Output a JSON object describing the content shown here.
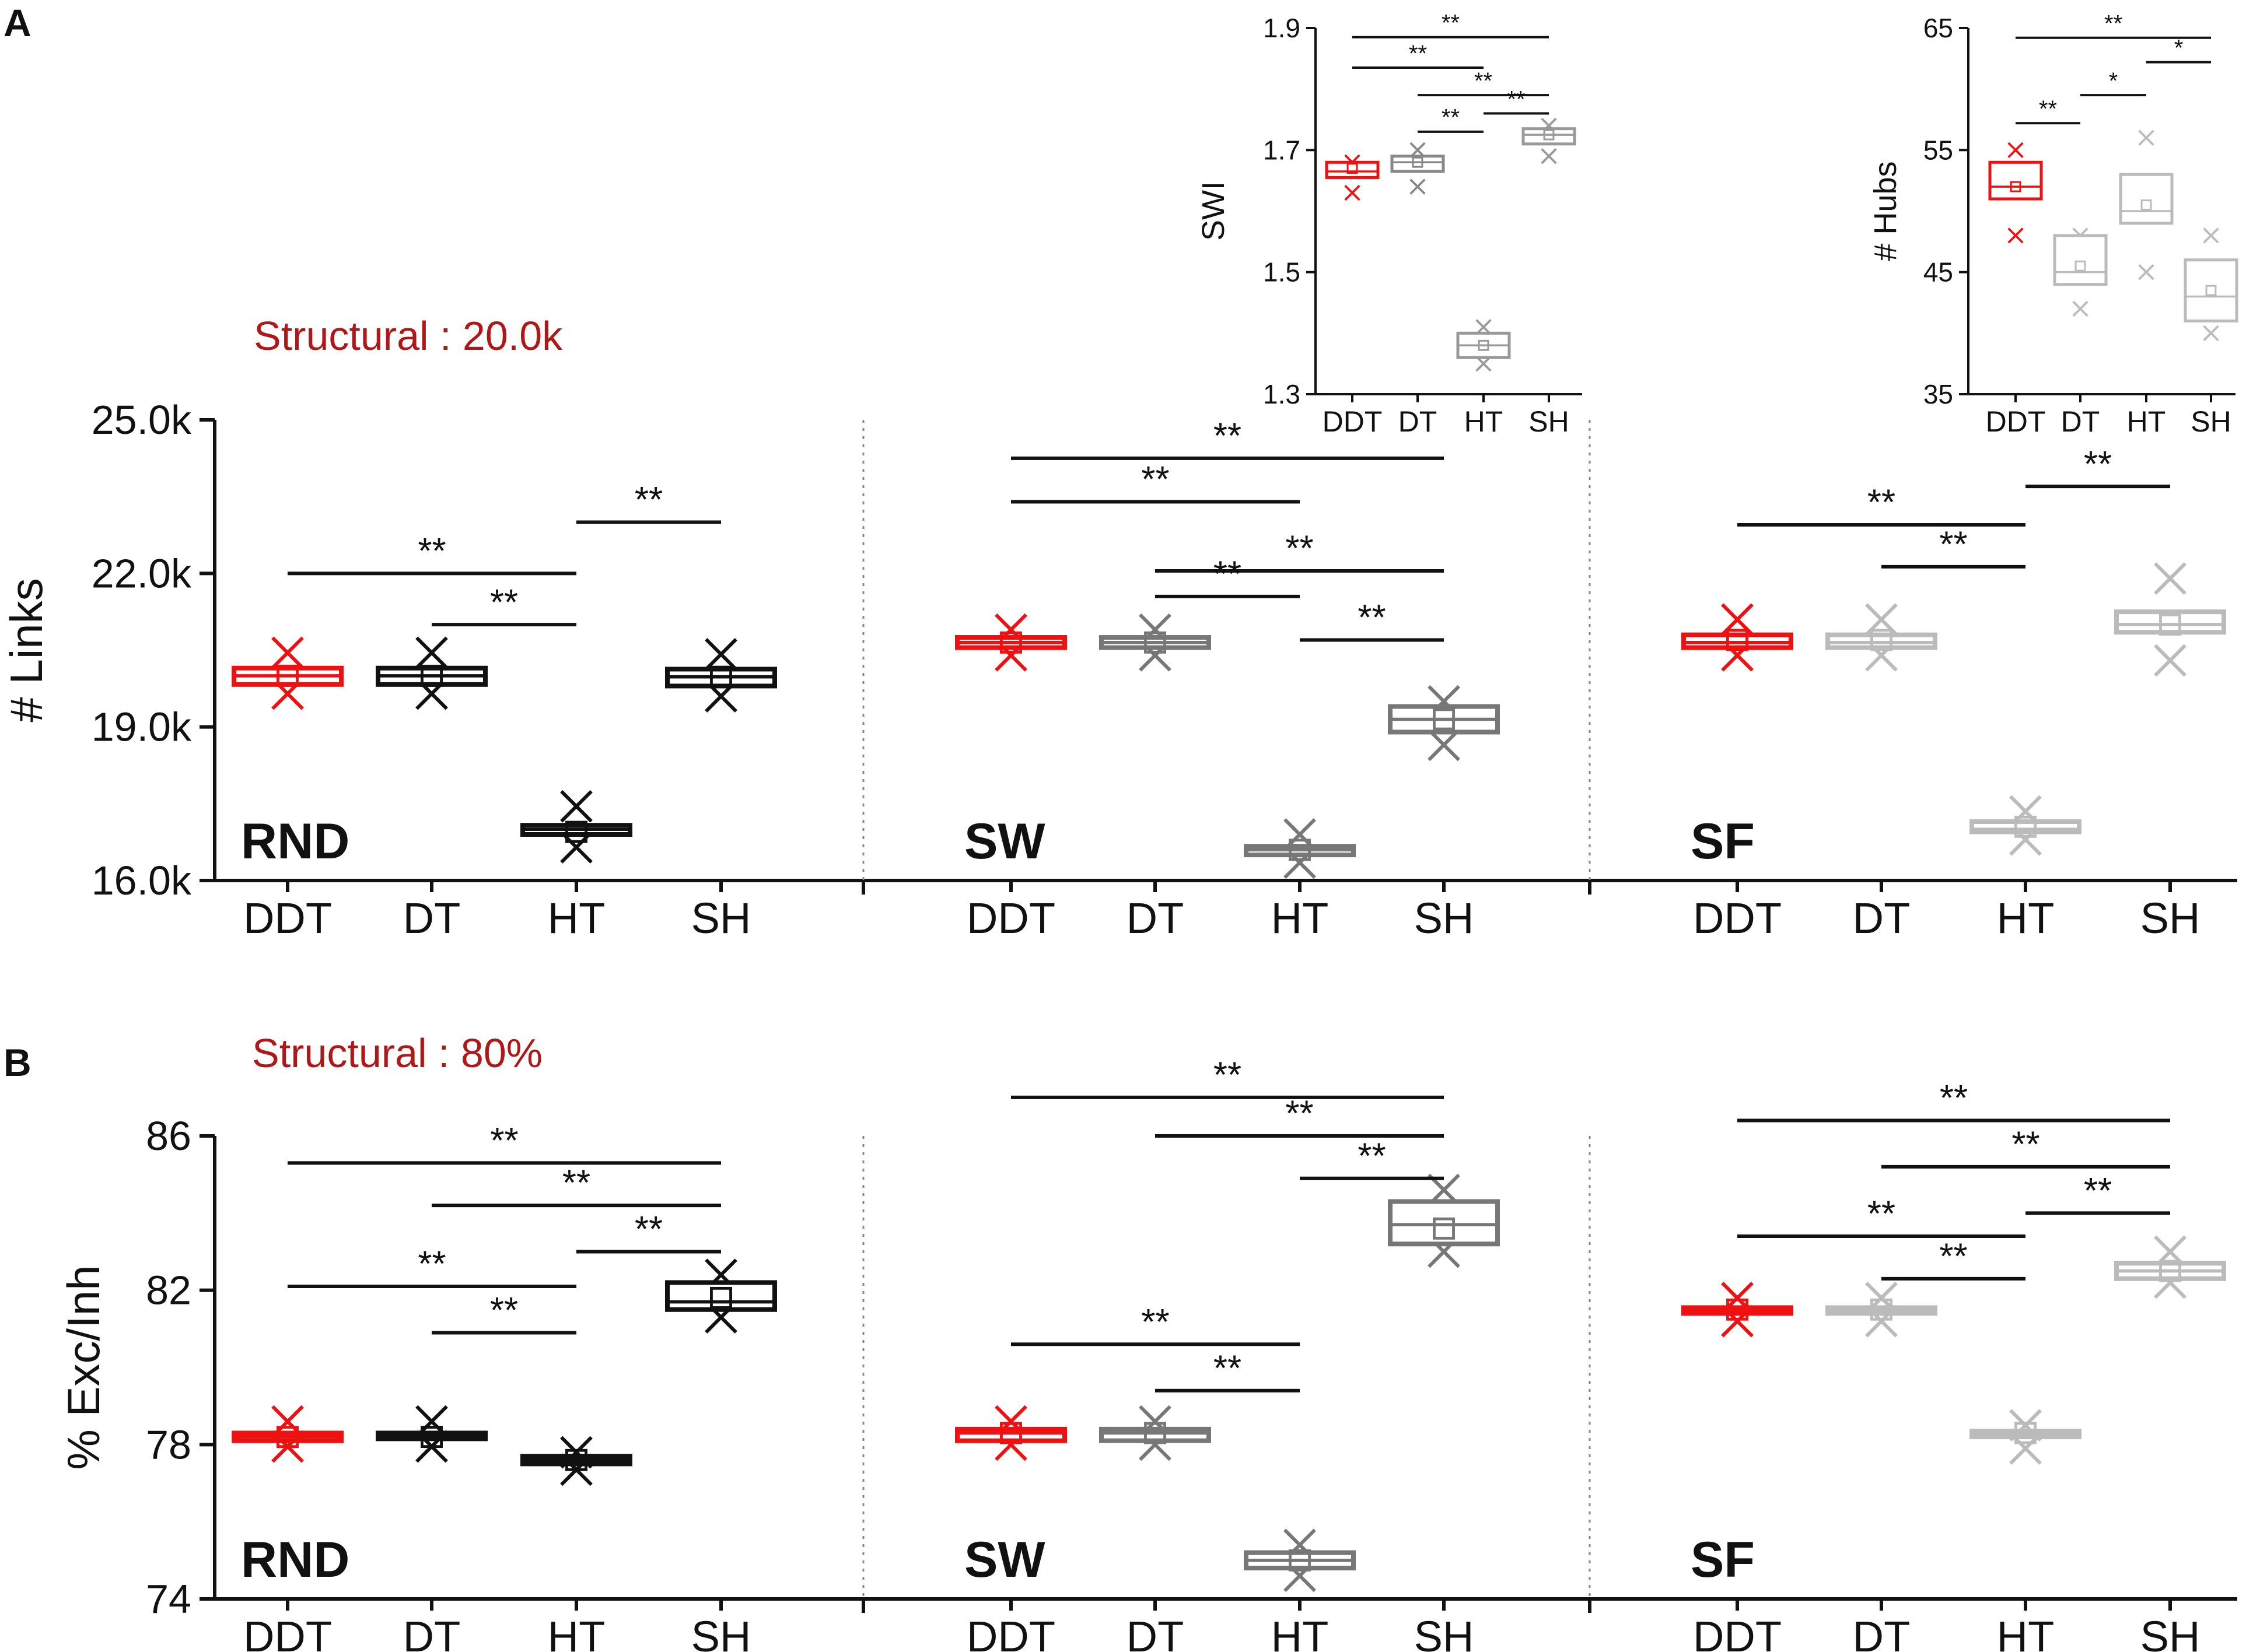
{
  "panel_labels": {
    "a": "A",
    "b": "B"
  },
  "annotations": {
    "a": "Structural : 20.0k",
    "b": "Structural : 80%"
  },
  "sig_levels": {
    "double": "**",
    "single": "*"
  },
  "colors": {
    "DDT": "#ee1111",
    "RND": "#111111",
    "SW": "#777777",
    "SF": "#bbbbbb"
  },
  "chart_data": [
    {
      "id": "links",
      "type": "box",
      "title": "",
      "ylabel": "# Links",
      "ylim": [
        16000,
        25000
      ],
      "yticks": [
        16000,
        19000,
        22000,
        25000
      ],
      "yticklabels": [
        "16.0k",
        "19.0k",
        "22.0k",
        "25.0k"
      ],
      "categories": [
        "DDT",
        "DT",
        "HT",
        "SH"
      ],
      "groups": [
        {
          "name": "RND",
          "color": "#111111",
          "boxes": [
            {
              "cat": "DDT",
              "q1": 19830,
              "median": 20000,
              "q3": 20150,
              "mean": 20000,
              "outliers": [
                20450,
                19650
              ],
              "color": "#ee1111"
            },
            {
              "cat": "DT",
              "q1": 19830,
              "median": 20000,
              "q3": 20150,
              "mean": 20000,
              "outliers": [
                20450,
                19650
              ]
            },
            {
              "cat": "HT",
              "q1": 16900,
              "median": 17000,
              "q3": 17080,
              "mean": 16950,
              "outliers": [
                17450,
                16650
              ]
            },
            {
              "cat": "SH",
              "q1": 19800,
              "median": 19980,
              "q3": 20130,
              "mean": 19980,
              "outliers": [
                20420,
                19600
              ]
            }
          ],
          "sig": [
            {
              "from": "DDT",
              "to": "HT",
              "label": "**",
              "y": 22000
            },
            {
              "from": "DT",
              "to": "HT",
              "label": "**",
              "y": 21000
            },
            {
              "from": "HT",
              "to": "SH",
              "label": "**",
              "y": 23000
            }
          ]
        },
        {
          "name": "SW",
          "color": "#777777",
          "boxes": [
            {
              "cat": "DDT",
              "q1": 20550,
              "median": 20650,
              "q3": 20750,
              "mean": 20650,
              "outliers": [
                20900,
                20400
              ],
              "color": "#ee1111"
            },
            {
              "cat": "DT",
              "q1": 20550,
              "median": 20650,
              "q3": 20750,
              "mean": 20650,
              "outliers": [
                20900,
                20400
              ]
            },
            {
              "cat": "HT",
              "q1": 16500,
              "median": 16600,
              "q3": 16670,
              "mean": 16600,
              "outliers": [
                16900,
                16350
              ]
            },
            {
              "cat": "SH",
              "q1": 18900,
              "median": 19150,
              "q3": 19400,
              "mean": 19150,
              "outliers": [
                19500,
                18650
              ]
            }
          ],
          "sig": [
            {
              "from": "DDT",
              "to": "SH",
              "label": "**",
              "y": 24250
            },
            {
              "from": "DDT",
              "to": "HT",
              "label": "**",
              "y": 23400
            },
            {
              "from": "DT",
              "to": "SH",
              "label": "**",
              "y": 22050
            },
            {
              "from": "DT",
              "to": "HT",
              "label": "**",
              "y": 21550
            },
            {
              "from": "HT",
              "to": "SH",
              "label": "**",
              "y": 20700
            }
          ]
        },
        {
          "name": "SF",
          "color": "#bbbbbb",
          "boxes": [
            {
              "cat": "DDT",
              "q1": 20550,
              "median": 20650,
              "q3": 20800,
              "mean": 20700,
              "outliers": [
                21100,
                20400
              ],
              "color": "#ee1111"
            },
            {
              "cat": "DT",
              "q1": 20550,
              "median": 20650,
              "q3": 20800,
              "mean": 20700,
              "outliers": [
                21100,
                20400
              ]
            },
            {
              "cat": "HT",
              "q1": 16950,
              "median": 17000,
              "q3": 17150,
              "mean": 17050,
              "outliers": [
                17350,
                16800
              ]
            },
            {
              "cat": "SH",
              "q1": 20850,
              "median": 21000,
              "q3": 21250,
              "mean": 21000,
              "outliers": [
                21900,
                20300
              ]
            }
          ],
          "sig": [
            {
              "from": "DDT",
              "to": "HT",
              "label": "**",
              "y": 22950
            },
            {
              "from": "DT",
              "to": "HT",
              "label": "**",
              "y": 22130
            },
            {
              "from": "HT",
              "to": "SH",
              "label": "**",
              "y": 23700
            }
          ]
        }
      ]
    },
    {
      "id": "exc",
      "type": "box",
      "title": "",
      "ylabel": "% Exc/Inh",
      "ylim": [
        74,
        86
      ],
      "yticks": [
        74,
        78,
        82,
        86
      ],
      "yticklabels": [
        "74",
        "78",
        "82",
        "86"
      ],
      "categories": [
        "DDT",
        "DT",
        "HT",
        "SH"
      ],
      "groups": [
        {
          "name": "RND",
          "color": "#111111",
          "boxes": [
            {
              "cat": "DDT",
              "q1": 78.1,
              "median": 78.2,
              "q3": 78.3,
              "mean": 78.2,
              "outliers": [
                78.6,
                77.95
              ],
              "color": "#ee1111"
            },
            {
              "cat": "DT",
              "q1": 78.15,
              "median": 78.2,
              "q3": 78.3,
              "mean": 78.2,
              "outliers": [
                78.6,
                77.95
              ]
            },
            {
              "cat": "HT",
              "q1": 77.5,
              "median": 77.6,
              "q3": 77.7,
              "mean": 77.6,
              "outliers": [
                77.8,
                77.35
              ]
            },
            {
              "cat": "SH",
              "q1": 81.5,
              "median": 81.7,
              "q3": 82.2,
              "mean": 81.8,
              "outliers": [
                82.4,
                81.3
              ]
            }
          ],
          "sig": [
            {
              "from": "DDT",
              "to": "SH",
              "label": "**",
              "y": 85.3
            },
            {
              "from": "DT",
              "to": "SH",
              "label": "**",
              "y": 84.2
            },
            {
              "from": "HT",
              "to": "SH",
              "label": "**",
              "y": 83.0
            },
            {
              "from": "DDT",
              "to": "HT",
              "label": "**",
              "y": 82.1
            },
            {
              "from": "DT",
              "to": "HT",
              "label": "**",
              "y": 80.9
            }
          ]
        },
        {
          "name": "SW",
          "color": "#777777",
          "boxes": [
            {
              "cat": "DDT",
              "q1": 78.1,
              "median": 78.3,
              "q3": 78.4,
              "mean": 78.3,
              "outliers": [
                78.6,
                78.0
              ],
              "color": "#ee1111"
            },
            {
              "cat": "DT",
              "q1": 78.1,
              "median": 78.3,
              "q3": 78.4,
              "mean": 78.3,
              "outliers": [
                78.6,
                78.0
              ]
            },
            {
              "cat": "HT",
              "q1": 74.8,
              "median": 75.0,
              "q3": 75.2,
              "mean": 75.0,
              "outliers": [
                75.4,
                74.6
              ]
            },
            {
              "cat": "SH",
              "q1": 83.2,
              "median": 83.7,
              "q3": 84.3,
              "mean": 83.6,
              "outliers": [
                84.6,
                83.0
              ]
            }
          ],
          "sig": [
            {
              "from": "DDT",
              "to": "SH",
              "label": "**",
              "y": 87.0
            },
            {
              "from": "DT",
              "to": "SH",
              "label": "**",
              "y": 86.0
            },
            {
              "from": "HT",
              "to": "SH",
              "label": "**",
              "y": 84.9
            },
            {
              "from": "DDT",
              "to": "HT",
              "label": "**",
              "y": 80.6
            },
            {
              "from": "DT",
              "to": "HT",
              "label": "**",
              "y": 79.4
            }
          ]
        },
        {
          "name": "SF",
          "color": "#bbbbbb",
          "boxes": [
            {
              "cat": "DDT",
              "q1": 81.4,
              "median": 81.5,
              "q3": 81.55,
              "mean": 81.5,
              "outliers": [
                81.8,
                81.2
              ],
              "color": "#ee1111"
            },
            {
              "cat": "DT",
              "q1": 81.4,
              "median": 81.5,
              "q3": 81.55,
              "mean": 81.5,
              "outliers": [
                81.8,
                81.2
              ]
            },
            {
              "cat": "HT",
              "q1": 78.2,
              "median": 78.25,
              "q3": 78.35,
              "mean": 78.3,
              "outliers": [
                78.5,
                77.9
              ]
            },
            {
              "cat": "SH",
              "q1": 82.3,
              "median": 82.5,
              "q3": 82.7,
              "mean": 82.5,
              "outliers": [
                83.0,
                82.2
              ]
            }
          ],
          "sig": [
            {
              "from": "DDT",
              "to": "SH",
              "label": "**",
              "y": 86.4
            },
            {
              "from": "DT",
              "to": "SH",
              "label": "**",
              "y": 85.2
            },
            {
              "from": "HT",
              "to": "SH",
              "label": "**",
              "y": 84.0
            },
            {
              "from": "DDT",
              "to": "HT",
              "label": "**",
              "y": 83.4
            },
            {
              "from": "DT",
              "to": "HT",
              "label": "**",
              "y": 82.3
            }
          ]
        }
      ]
    },
    {
      "id": "swi",
      "type": "box",
      "title": "",
      "ylabel": "SWI",
      "ylim": [
        1.3,
        1.9
      ],
      "yticks": [
        1.3,
        1.5,
        1.7,
        1.9
      ],
      "yticklabels": [
        "1.3",
        "1.5",
        "1.7",
        "1.9"
      ],
      "categories": [
        "DDT",
        "DT",
        "HT",
        "SH"
      ],
      "boxes": [
        {
          "cat": "DDT",
          "q1": 1.655,
          "median": 1.665,
          "q3": 1.68,
          "mean": 1.67,
          "outliers": [
            1.68,
            1.63
          ],
          "color": "#ee1111"
        },
        {
          "cat": "DT",
          "q1": 1.665,
          "median": 1.68,
          "q3": 1.69,
          "mean": 1.68,
          "outliers": [
            1.7,
            1.64
          ],
          "color": "#888888"
        },
        {
          "cat": "HT",
          "q1": 1.36,
          "median": 1.38,
          "q3": 1.4,
          "mean": 1.38,
          "outliers": [
            1.41,
            1.35
          ],
          "color": "#999999"
        },
        {
          "cat": "SH",
          "q1": 1.71,
          "median": 1.725,
          "q3": 1.735,
          "mean": 1.725,
          "outliers": [
            1.74,
            1.69
          ],
          "color": "#999999"
        }
      ],
      "sig": [
        {
          "from": "DDT",
          "to": "SH",
          "label": "**",
          "y": 1.885
        },
        {
          "from": "DDT",
          "to": "HT",
          "label": "**",
          "y": 1.835
        },
        {
          "from": "DT",
          "to": "SH",
          "label": "**",
          "y": 1.79
        },
        {
          "from": "HT",
          "to": "SH",
          "label": "**",
          "y": 1.76
        },
        {
          "from": "DT",
          "to": "HT",
          "label": "**",
          "y": 1.73
        }
      ]
    },
    {
      "id": "hubs",
      "type": "box",
      "title": "",
      "ylabel": "# Hubs",
      "ylim": [
        35,
        65
      ],
      "yticks": [
        35,
        45,
        55,
        65
      ],
      "yticklabels": [
        "35",
        "45",
        "55",
        "65"
      ],
      "categories": [
        "DDT",
        "DT",
        "HT",
        "SH"
      ],
      "boxes": [
        {
          "cat": "DDT",
          "q1": 51,
          "median": 52,
          "q3": 54,
          "mean": 52,
          "outliers": [
            55,
            48
          ],
          "color": "#ee1111"
        },
        {
          "cat": "DT",
          "q1": 44,
          "median": 45,
          "q3": 48,
          "mean": 45.5,
          "outliers": [
            48,
            42
          ],
          "color": "#bbbbbb"
        },
        {
          "cat": "HT",
          "q1": 49,
          "median": 50,
          "q3": 53,
          "mean": 50.5,
          "outliers": [
            56,
            45
          ],
          "color": "#bbbbbb"
        },
        {
          "cat": "SH",
          "q1": 41,
          "median": 43,
          "q3": 46,
          "mean": 43.5,
          "outliers": [
            48,
            40
          ],
          "color": "#bbbbbb"
        }
      ],
      "sig": [
        {
          "from": "DDT",
          "to": "SH",
          "label": "**",
          "y": 64.2
        },
        {
          "from": "HT",
          "to": "SH",
          "label": "*",
          "y": 62.2
        },
        {
          "from": "DT",
          "to": "HT",
          "label": "*",
          "y": 59.5
        },
        {
          "from": "DDT",
          "to": "DT",
          "label": "**",
          "y": 57.2
        }
      ]
    }
  ]
}
